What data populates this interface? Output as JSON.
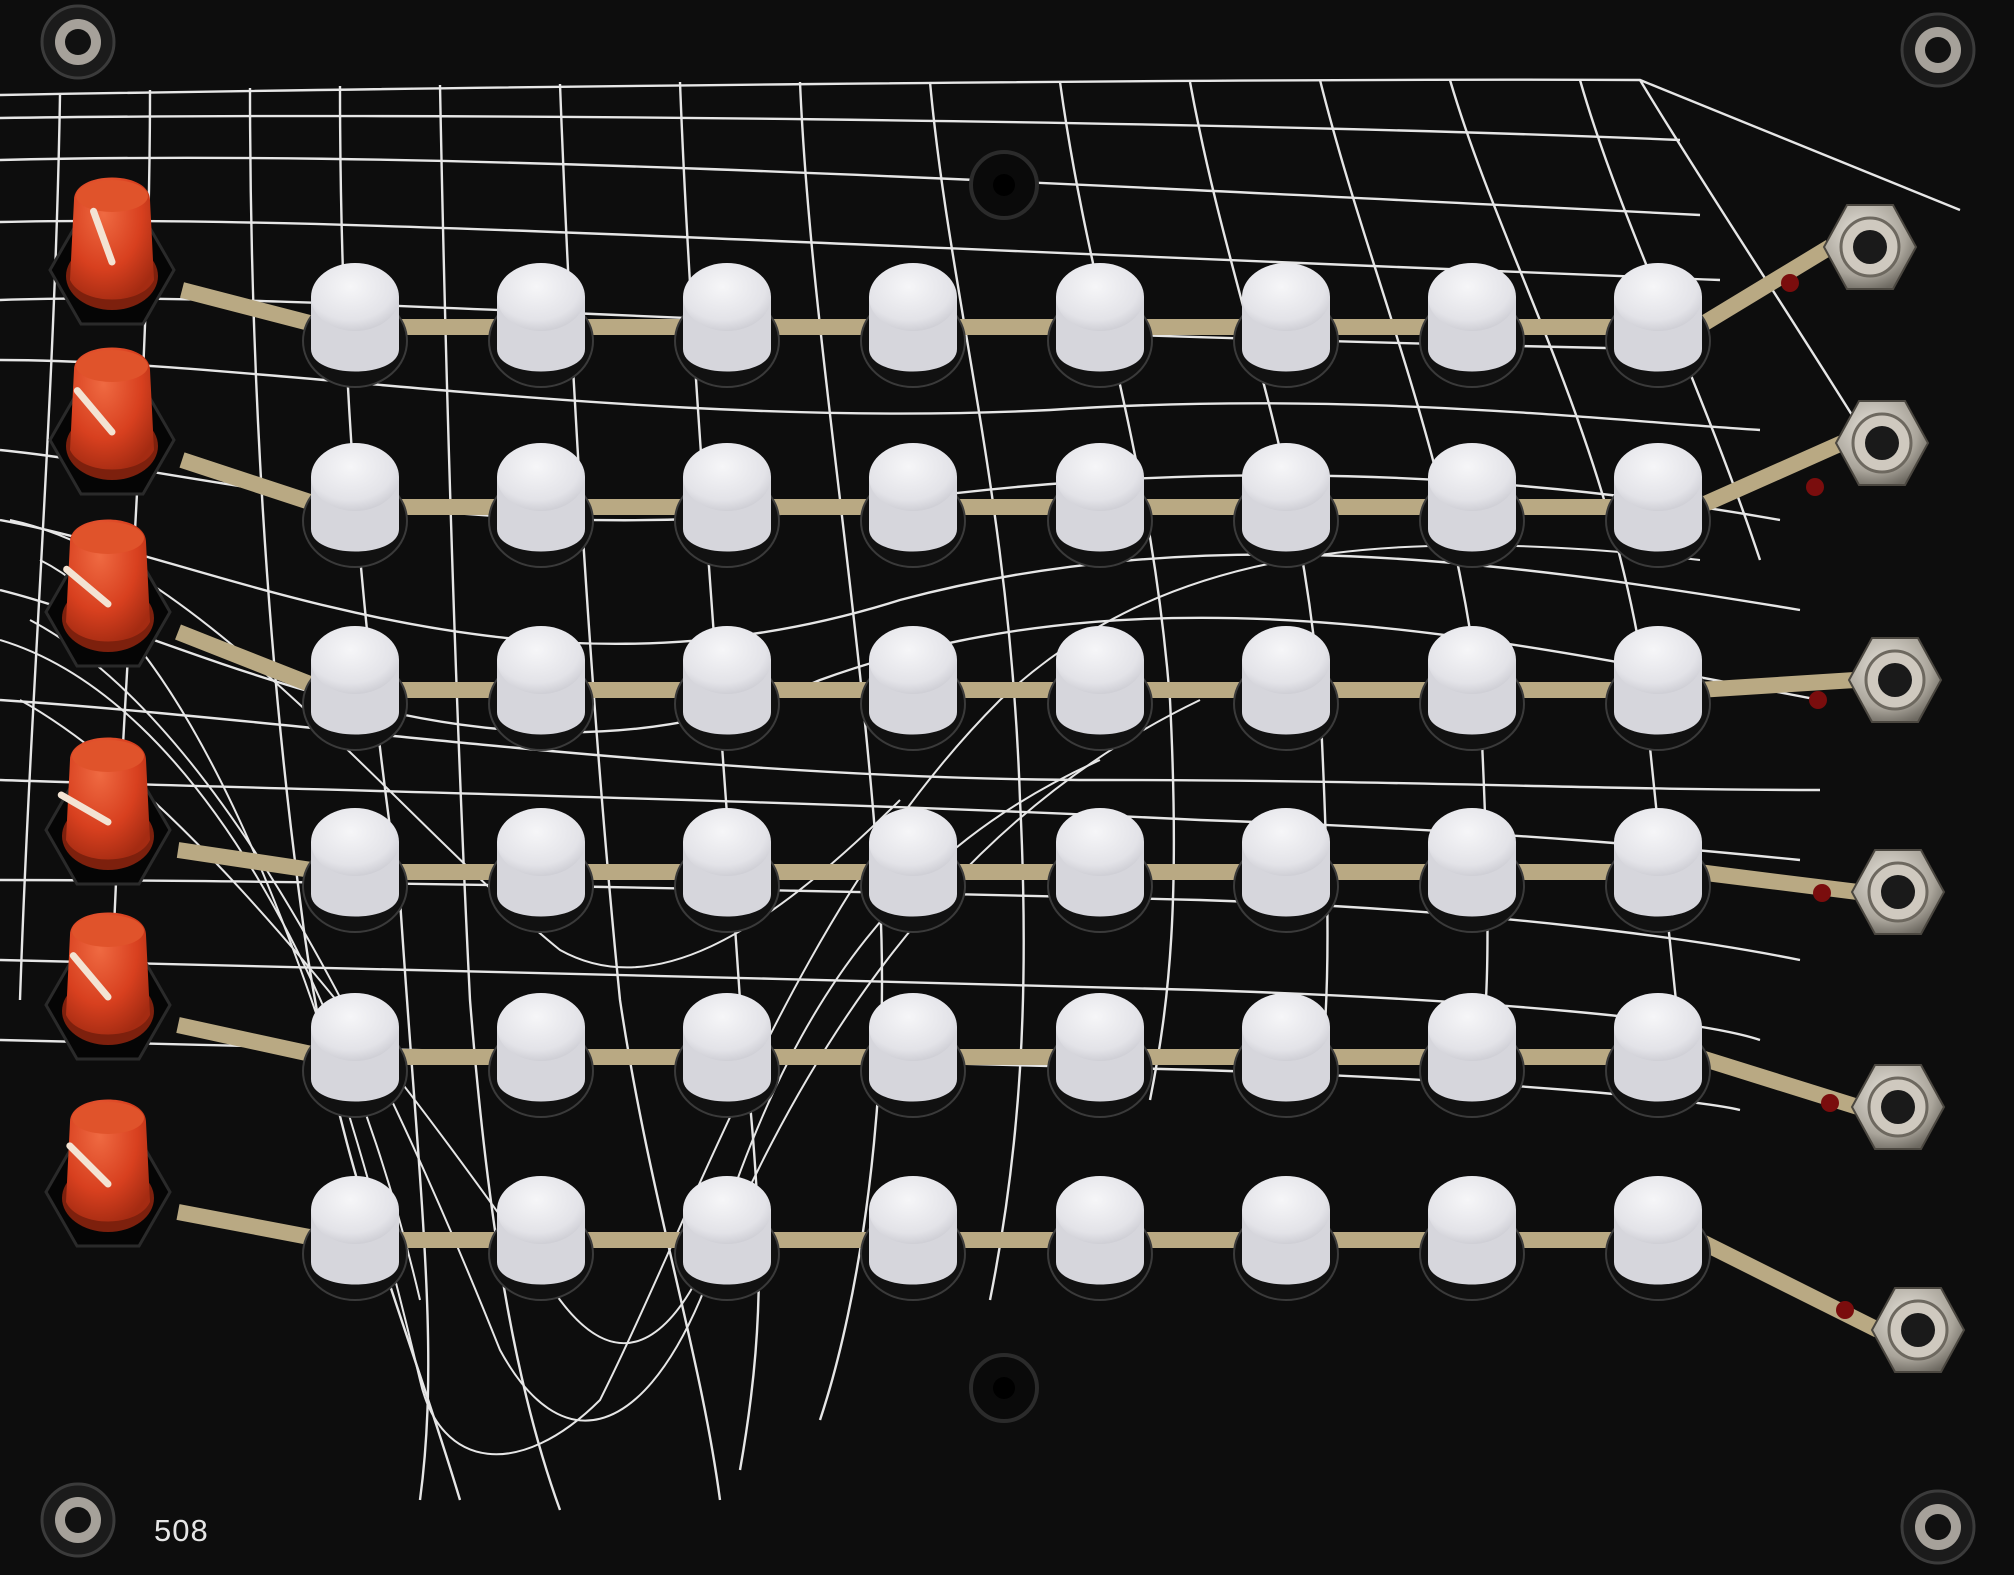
{
  "panel": {
    "model_number": "508",
    "colors": {
      "background": "#0d0d0d",
      "grid_line": "#e6e6e6",
      "trace": "#b9a983",
      "knob_body": "#d8401f",
      "knob_indicator": "#f3e3d3",
      "button_cap": "#e8e8ec",
      "jack_metal": "#b9b4aa",
      "jack_led": "#7a0d0d"
    },
    "rows": [
      {
        "knob": {
          "icon": "knob-icon"
        },
        "buttons": 8,
        "jack": {
          "icon": "jack-icon"
        }
      },
      {
        "knob": {
          "icon": "knob-icon"
        },
        "buttons": 8,
        "jack": {
          "icon": "jack-icon"
        }
      },
      {
        "knob": {
          "icon": "knob-icon"
        },
        "buttons": 8,
        "jack": {
          "icon": "jack-icon"
        }
      },
      {
        "knob": {
          "icon": "knob-icon"
        },
        "buttons": 8,
        "jack": {
          "icon": "jack-icon"
        }
      },
      {
        "knob": {
          "icon": "knob-icon"
        },
        "buttons": 8,
        "jack": {
          "icon": "jack-icon"
        }
      },
      {
        "knob": {
          "icon": "knob-icon"
        },
        "buttons": 8,
        "jack": {
          "icon": "jack-icon"
        }
      }
    ],
    "screws": [
      "screw-icon",
      "screw-icon",
      "screw-icon",
      "screw-icon"
    ]
  }
}
